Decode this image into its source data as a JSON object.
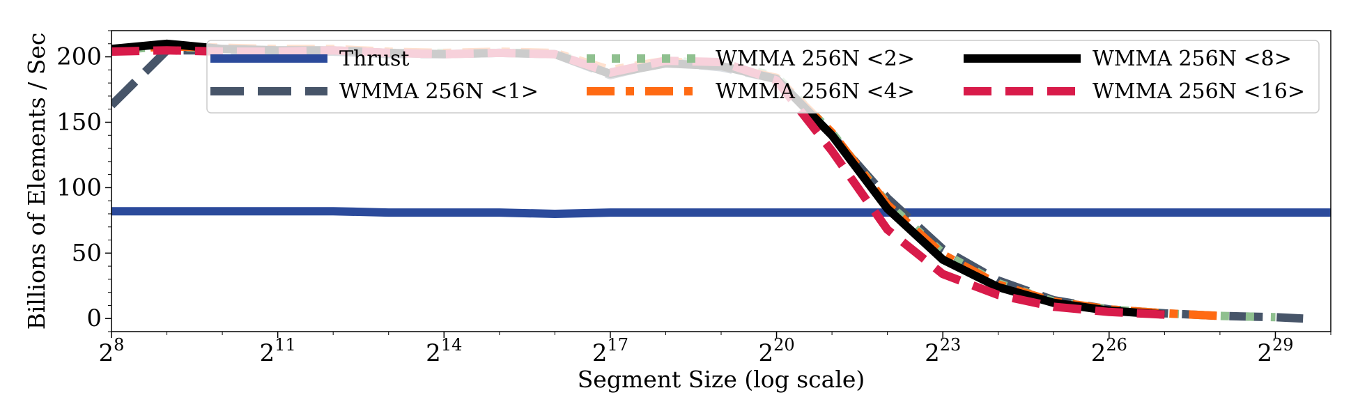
{
  "chart_data": {
    "type": "line",
    "title": "",
    "xlabel": "Segment Size (log scale)",
    "ylabel": "Billions of Elements / Sec",
    "x_scale": "log2",
    "xlim_exponent": [
      8,
      30
    ],
    "ylim": [
      -10,
      220
    ],
    "x_ticks": [
      {
        "exp": 8,
        "base": "2",
        "sup": "8"
      },
      {
        "exp": 11,
        "base": "2",
        "sup": "11"
      },
      {
        "exp": 14,
        "base": "2",
        "sup": "14"
      },
      {
        "exp": 17,
        "base": "2",
        "sup": "17"
      },
      {
        "exp": 20,
        "base": "2",
        "sup": "20"
      },
      {
        "exp": 23,
        "base": "2",
        "sup": "23"
      },
      {
        "exp": 26,
        "base": "2",
        "sup": "26"
      },
      {
        "exp": 29,
        "base": "2",
        "sup": "29"
      }
    ],
    "y_ticks": [
      0,
      50,
      100,
      150,
      200
    ],
    "legend": {
      "placement": "top-right",
      "columns": 3
    },
    "series": [
      {
        "name": "Thrust",
        "color": "#2b4a9b",
        "style": "solid",
        "x_exp": [
          8,
          9,
          10,
          11,
          12,
          13,
          14,
          15,
          16,
          17,
          18,
          19,
          20,
          21,
          22,
          23,
          24,
          25,
          26,
          27,
          28,
          29,
          30
        ],
        "y": [
          82,
          82,
          82,
          82,
          82,
          81,
          81,
          81,
          80,
          81,
          81,
          81,
          81,
          81,
          81,
          81,
          81,
          81,
          81,
          81,
          81,
          81,
          81
        ]
      },
      {
        "name": "WMMA 256N <1>",
        "color": "#475569",
        "style": "long-dash",
        "x_exp": [
          8,
          9,
          10,
          11,
          12,
          13,
          14,
          15,
          16,
          17,
          18,
          19,
          20,
          21,
          22,
          23,
          24,
          25,
          26,
          27,
          28,
          29,
          29.5
        ],
        "y": [
          163,
          205,
          205,
          204,
          204,
          202,
          202,
          203,
          202,
          186,
          196,
          192,
          183,
          140,
          92,
          53,
          29,
          14,
          7,
          4,
          2,
          1,
          0
        ]
      },
      {
        "name": "WMMA 256N <2>",
        "color": "#8fc08f",
        "style": "dotted",
        "x_exp": [
          8,
          9,
          10,
          11,
          12,
          13,
          14,
          15,
          16,
          17,
          18,
          19,
          20,
          21,
          22,
          23,
          24,
          25,
          26,
          27,
          28,
          29
        ],
        "y": [
          205,
          208,
          206,
          205,
          205,
          203,
          203,
          203,
          203,
          188,
          197,
          195,
          185,
          142,
          88,
          50,
          27,
          13,
          7,
          4,
          2,
          1
        ]
      },
      {
        "name": "WMMA 256N <4>",
        "color": "#ff6a13",
        "style": "dash-dot",
        "x_exp": [
          8,
          9,
          10,
          11,
          12,
          13,
          14,
          15,
          16,
          17,
          18,
          19,
          20,
          21,
          22,
          23,
          24,
          25,
          26,
          27,
          28
        ],
        "y": [
          205,
          208,
          207,
          206,
          206,
          204,
          203,
          204,
          203,
          190,
          197,
          193,
          184,
          142,
          87,
          49,
          26,
          13,
          7,
          4,
          2
        ]
      },
      {
        "name": "WMMA 256N <8>",
        "color": "#000000",
        "style": "solid",
        "x_exp": [
          8,
          9,
          10,
          11,
          12,
          13,
          14,
          15,
          16,
          17,
          18,
          19,
          20,
          21,
          22,
          23,
          24,
          25,
          26,
          27
        ],
        "y": [
          206,
          210,
          206,
          205,
          205,
          203,
          202,
          203,
          202,
          187,
          195,
          193,
          183,
          140,
          84,
          45,
          24,
          12,
          6,
          3
        ]
      },
      {
        "name": "WMMA 256N <16>",
        "color": "#d81b4a",
        "style": "dashed",
        "x_exp": [
          8,
          9,
          10,
          11,
          12,
          13,
          14,
          15,
          16,
          17,
          18,
          19,
          20,
          21,
          22,
          23,
          24,
          25,
          26,
          27
        ],
        "y": [
          204,
          205,
          204,
          204,
          205,
          203,
          202,
          203,
          202,
          188,
          197,
          196,
          182,
          128,
          68,
          34,
          18,
          9,
          5,
          3
        ]
      }
    ]
  }
}
